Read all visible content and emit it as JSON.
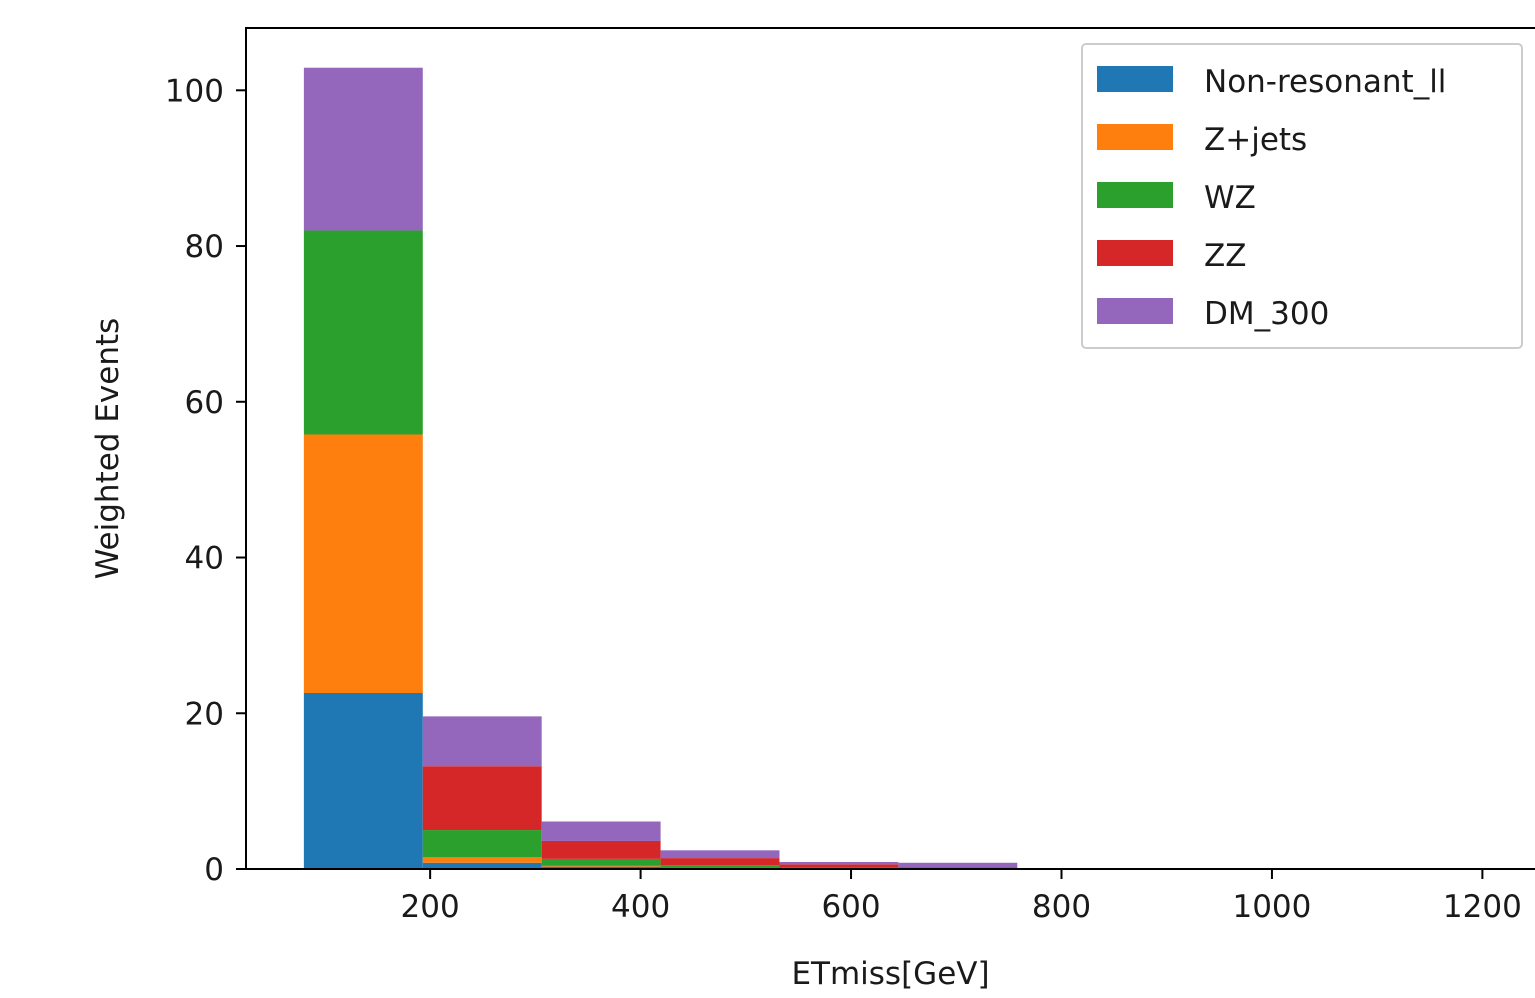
{
  "chart_data": {
    "type": "bar",
    "stacked": true,
    "xlabel": "ETmiss[GeV]",
    "ylabel": "Weighted Events",
    "xlim": [
      25,
      1250
    ],
    "ylim": [
      0,
      108
    ],
    "xticks": [
      200,
      400,
      600,
      800,
      1000,
      1200
    ],
    "yticks": [
      0,
      20,
      40,
      60,
      80,
      100
    ],
    "bin_edges": [
      80,
      193,
      306,
      419,
      532,
      645,
      758,
      871,
      984,
      1097,
      1210
    ],
    "legend_position": "top-right",
    "grid": false,
    "series": [
      {
        "name": "Non-resonant_ll",
        "color": "#1f77b4",
        "values": [
          22.6,
          0.8,
          0.3,
          0.2,
          0.1,
          0.0,
          0.0,
          0.0,
          0.0,
          0.0
        ]
      },
      {
        "name": "Z+jets",
        "color": "#ff7f0e",
        "values": [
          33.2,
          0.7,
          0.1,
          0.0,
          0.0,
          0.0,
          0.0,
          0.0,
          0.0,
          0.0
        ]
      },
      {
        "name": "WZ",
        "color": "#2ca02c",
        "values": [
          26.2,
          3.5,
          0.9,
          0.3,
          0.1,
          0.0,
          0.0,
          0.0,
          0.0,
          0.0
        ]
      },
      {
        "name": "ZZ",
        "color": "#d62728",
        "values": [
          0.0,
          8.2,
          2.3,
          0.9,
          0.4,
          0.2,
          0.0,
          0.0,
          0.0,
          0.0
        ]
      },
      {
        "name": "DM_300",
        "color": "#9467bd",
        "values": [
          20.9,
          6.4,
          2.5,
          1.0,
          0.3,
          0.6,
          0.0,
          0.0,
          0.0,
          0.0
        ]
      }
    ]
  }
}
